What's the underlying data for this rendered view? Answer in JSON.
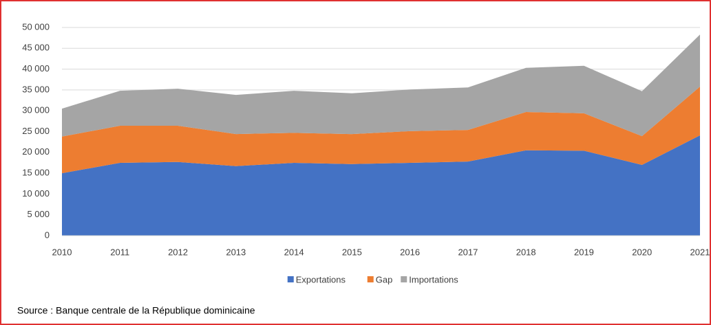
{
  "chart_data": {
    "type": "stacked_area",
    "categories": [
      "2010",
      "2011",
      "2012",
      "2013",
      "2014",
      "2015",
      "2016",
      "2017",
      "2018",
      "2019",
      "2020",
      "2021"
    ],
    "series": [
      {
        "name": "Exportations",
        "color": "#4472c4",
        "values": [
          15000,
          17500,
          17700,
          16700,
          17500,
          17200,
          17500,
          17800,
          20500,
          20400,
          17000,
          24100
        ]
      },
      {
        "name": "Gap",
        "color": "#ed7d31",
        "values": [
          8800,
          8900,
          8700,
          7700,
          7200,
          7200,
          7600,
          7600,
          9200,
          9000,
          6900,
          11700
        ]
      },
      {
        "name": "Importations",
        "color": "#a5a5a5",
        "values": [
          6700,
          8400,
          8900,
          9400,
          10100,
          9800,
          10000,
          10200,
          10600,
          11400,
          10800,
          12500
        ]
      }
    ],
    "ylim": [
      0,
      50000
    ],
    "yticks": [
      0,
      {
        "value": 5000,
        "label": "5 000"
      },
      {
        "value": 10000,
        "label": "10 000"
      },
      {
        "value": 15000,
        "label": "15 000"
      },
      {
        "value": 20000,
        "label": "20 000"
      },
      {
        "value": 25000,
        "label": "25 000"
      },
      {
        "value": 30000,
        "label": "30 000"
      },
      {
        "value": 35000,
        "label": "35 000"
      },
      {
        "value": 40000,
        "label": "40 000"
      },
      {
        "value": 45000,
        "label": "45 000"
      },
      {
        "value": 50000,
        "label": "50 000"
      }
    ],
    "grid": true,
    "legend": "bottom",
    "source": "Source : Banque centrale de la République dominicaine"
  }
}
